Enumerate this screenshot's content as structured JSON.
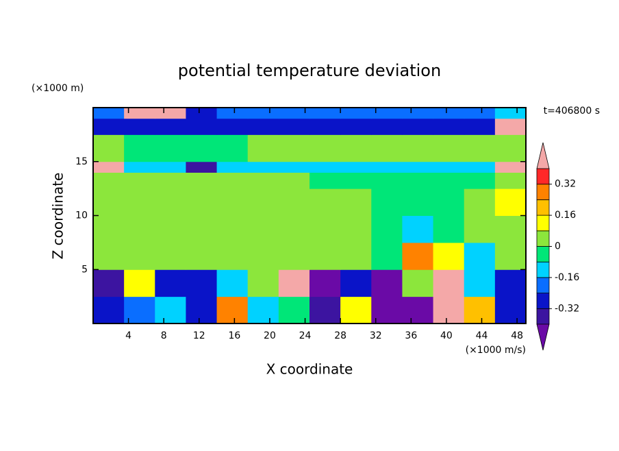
{
  "chart_data": {
    "type": "contour",
    "title": "potential temperature deviation",
    "x_label": "X coordinate",
    "y_label": "Z coordinate",
    "x_unit": "(×1000 m/s)",
    "y_unit": "(×1000 m)",
    "time_label": "t=406800 s",
    "xlim": [
      0,
      49
    ],
    "ylim": [
      0,
      20
    ],
    "xticks": [
      4,
      8,
      12,
      16,
      20,
      24,
      28,
      32,
      36,
      40,
      44,
      48
    ],
    "yticks": [
      5,
      10,
      15
    ],
    "x_edges": [
      0,
      3.5,
      7,
      10.5,
      14,
      17.5,
      21,
      24.5,
      28,
      31.5,
      35,
      38.5,
      42,
      45.5,
      49
    ],
    "y_edges": [
      0,
      2.5,
      5,
      7.5,
      10,
      12.5,
      14,
      15,
      17.5,
      19,
      20
    ],
    "z": [
      [
        -0.25,
        -0.2,
        -0.1,
        -0.3,
        0.3,
        -0.1,
        -0.05,
        -0.38,
        0.1,
        -0.45,
        -0.42,
        0.45,
        0.2,
        -0.3
      ],
      [
        -0.35,
        0.1,
        -0.3,
        -0.25,
        -0.12,
        0.05,
        0.45,
        -0.45,
        -0.3,
        -0.45,
        0.05,
        0.45,
        -0.15,
        -0.3
      ],
      [
        0.02,
        0.02,
        0.03,
        0.02,
        0.03,
        0.03,
        0.02,
        0.03,
        0.01,
        -0.05,
        0.25,
        0.15,
        -0.1,
        0.02
      ],
      [
        0.05,
        0.06,
        0.03,
        0.03,
        0.04,
        0.02,
        0.03,
        0.04,
        0.02,
        -0.05,
        -0.12,
        -0.06,
        0.01,
        0.03
      ],
      [
        0.04,
        0.05,
        0.03,
        0.02,
        0.02,
        0.03,
        0.02,
        0.03,
        0.01,
        -0.03,
        -0.06,
        -0.02,
        0.02,
        0.1
      ],
      [
        0.02,
        0.02,
        0.03,
        0.03,
        0.02,
        0.02,
        0.02,
        -0.02,
        -0.02,
        -0.02,
        -0.03,
        -0.02,
        -0.02,
        0.05
      ],
      [
        0.45,
        -0.1,
        -0.1,
        -0.35,
        -0.1,
        -0.1,
        -0.1,
        -0.1,
        -0.1,
        -0.1,
        -0.1,
        -0.1,
        -0.1,
        0.45
      ],
      [
        0.02,
        -0.03,
        -0.02,
        -0.03,
        -0.02,
        0.03,
        0.03,
        0.03,
        0.02,
        0.03,
        0.03,
        0.03,
        0.02,
        0.02
      ],
      [
        -0.3,
        -0.25,
        -0.3,
        -0.3,
        -0.3,
        -0.3,
        -0.3,
        -0.3,
        -0.3,
        -0.3,
        -0.3,
        -0.3,
        -0.3,
        0.45
      ],
      [
        -0.2,
        0.45,
        0.45,
        -0.25,
        -0.2,
        -0.2,
        -0.2,
        -0.2,
        -0.2,
        -0.2,
        -0.2,
        -0.2,
        -0.2,
        -0.1
      ]
    ],
    "levels": [
      -0.4,
      -0.32,
      -0.24,
      -0.16,
      -0.08,
      0,
      0.08,
      0.16,
      0.24,
      0.32,
      0.4
    ],
    "level_ticks": [
      -0.32,
      -0.16,
      0,
      0.16,
      0.32
    ],
    "colors": [
      "#6a0aa6",
      "#3c14a0",
      "#0a14c8",
      "#0a6eff",
      "#00d2ff",
      "#00e678",
      "#8ce63c",
      "#ffff00",
      "#ffc000",
      "#ff8200",
      "#ff2828",
      "#f4a8a8"
    ]
  }
}
